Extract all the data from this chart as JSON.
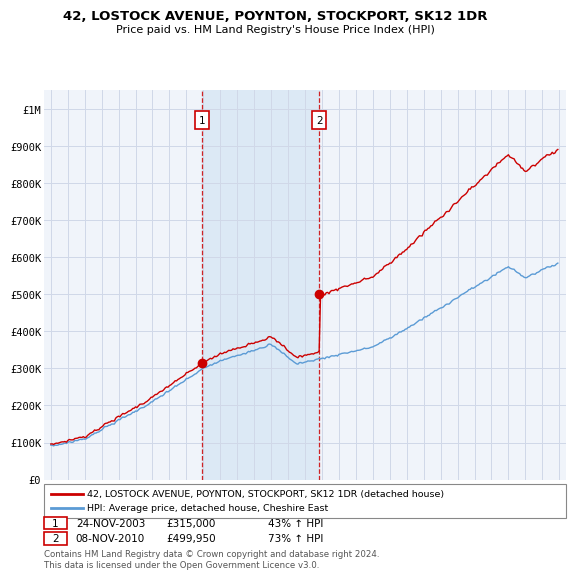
{
  "title": "42, LOSTOCK AVENUE, POYNTON, STOCKPORT, SK12 1DR",
  "subtitle": "Price paid vs. HM Land Registry's House Price Index (HPI)",
  "ylabel_ticks": [
    "£0",
    "£100K",
    "£200K",
    "£300K",
    "£400K",
    "£500K",
    "£600K",
    "£700K",
    "£800K",
    "£900K",
    "£1M"
  ],
  "ytick_values": [
    0,
    100000,
    200000,
    300000,
    400000,
    500000,
    600000,
    700000,
    800000,
    900000,
    1000000
  ],
  "ylim": [
    0,
    1050000
  ],
  "x_start_year": 1995,
  "x_end_year": 2025,
  "sale1_year": 2003.9,
  "sale1_price": 315000,
  "sale2_year": 2010.85,
  "sale2_price": 499950,
  "hpi_color": "#5b9bd5",
  "price_color": "#cc0000",
  "shade_color": "#dce9f5",
  "background_color": "#ffffff",
  "plot_bg_color": "#f0f4fa",
  "grid_color": "#d0d8e8",
  "legend_label_price": "42, LOSTOCK AVENUE, POYNTON, STOCKPORT, SK12 1DR (detached house)",
  "legend_label_hpi": "HPI: Average price, detached house, Cheshire East",
  "annotation1_label": "1",
  "annotation1_date": "24-NOV-2003",
  "annotation1_price": "£315,000",
  "annotation1_pct": "43% ↑ HPI",
  "annotation2_label": "2",
  "annotation2_date": "08-NOV-2010",
  "annotation2_price": "£499,950",
  "annotation2_pct": "73% ↑ HPI",
  "footer": "Contains HM Land Registry data © Crown copyright and database right 2024.\nThis data is licensed under the Open Government Licence v3.0."
}
